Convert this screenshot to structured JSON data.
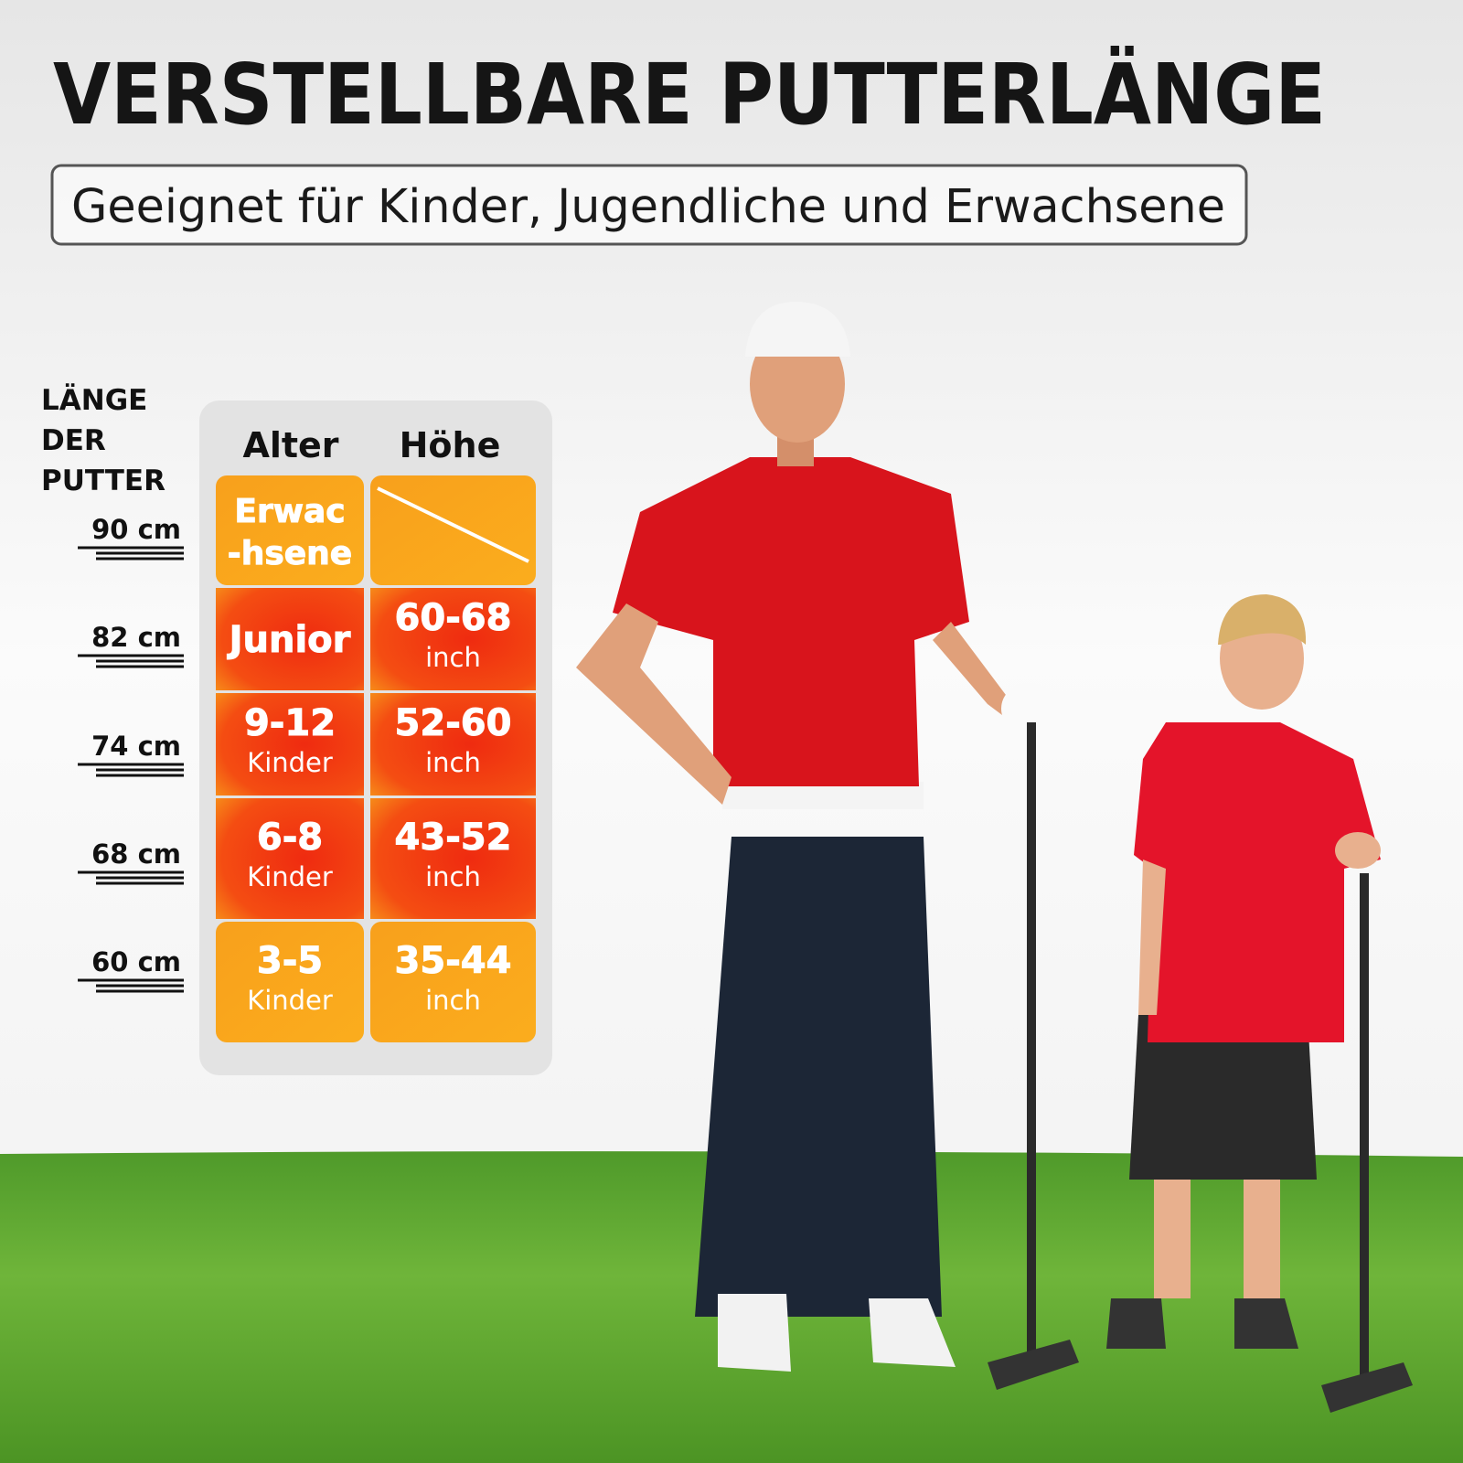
{
  "header": {
    "title": "VERSTELLBARE PUTTERLÄNGE",
    "subtitle": "Geeignet für Kinder, Jugendliche und Erwachsene"
  },
  "length_scale": {
    "label": [
      "LÄNGE",
      "DER",
      "PUTTER"
    ],
    "marks": [
      "90 cm",
      "82 cm",
      "74 cm",
      "68 cm",
      "60 cm"
    ]
  },
  "table": {
    "headers": [
      "Alter",
      "Höhe"
    ],
    "rows": [
      {
        "age": {
          "main": [
            "Erwac",
            "-hsene"
          ]
        }
      },
      {
        "age": {
          "main": [
            "Junior"
          ]
        },
        "height": {
          "main": [
            "60-68"
          ],
          "sub": "inch"
        }
      },
      {
        "age": {
          "main": [
            "9-12"
          ],
          "sub": "Kinder"
        },
        "height": {
          "main": [
            "52-60"
          ],
          "sub": "inch"
        }
      },
      {
        "age": {
          "main": [
            "6-8"
          ],
          "sub": "Kinder"
        },
        "height": {
          "main": [
            "43-52"
          ],
          "sub": "inch"
        }
      },
      {
        "age": {
          "main": [
            "3-5"
          ],
          "sub": "Kinder"
        },
        "height": {
          "main": [
            "35-44"
          ],
          "sub": "inch"
        }
      }
    ]
  }
}
